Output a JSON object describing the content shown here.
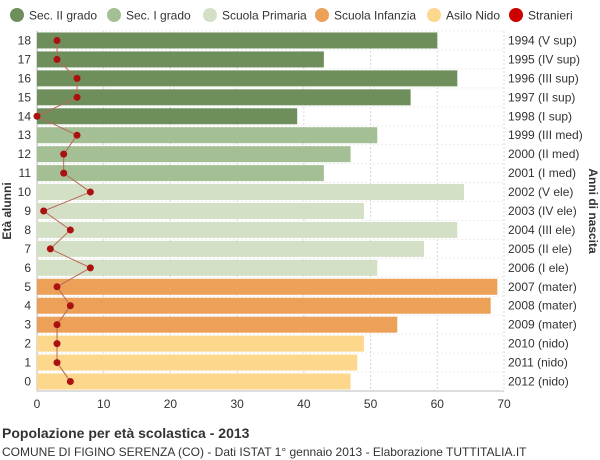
{
  "chart_data": {
    "type": "bar",
    "orientation": "horizontal",
    "title": "Popolazione per età scolastica - 2013",
    "subtitle": "COMUNE DI FIGINO SERENZA (CO) - Dati ISTAT 1° gennaio 2013 - Elaborazione TUTTITALIA.IT",
    "ylabel_left": "Età alunni",
    "ylabel_right": "Anni di nascita",
    "xlim": [
      0,
      70
    ],
    "xticks": [
      0,
      10,
      20,
      30,
      40,
      50,
      60,
      70
    ],
    "grid": true,
    "legend_position": "top",
    "legend": [
      {
        "name": "Sec. II grado",
        "color": "#6e8f5c"
      },
      {
        "name": "Sec. I grado",
        "color": "#a3bf93"
      },
      {
        "name": "Scuola Primaria",
        "color": "#d4e0c5"
      },
      {
        "name": "Scuola Infanzia",
        "color": "#eca058"
      },
      {
        "name": "Asilo Nido",
        "color": "#fdd78c"
      },
      {
        "name": "Stranieri",
        "color": "#cc0000"
      }
    ],
    "rows": [
      {
        "age": "18",
        "birth": "1994 (V sup)",
        "value": 60,
        "stranieri": 3,
        "group": 0
      },
      {
        "age": "17",
        "birth": "1995 (IV sup)",
        "value": 43,
        "stranieri": 3,
        "group": 0
      },
      {
        "age": "16",
        "birth": "1996 (III sup)",
        "value": 63,
        "stranieri": 6,
        "group": 0
      },
      {
        "age": "15",
        "birth": "1997 (II sup)",
        "value": 56,
        "stranieri": 6,
        "group": 0
      },
      {
        "age": "14",
        "birth": "1998 (I sup)",
        "value": 39,
        "stranieri": 0,
        "group": 0
      },
      {
        "age": "13",
        "birth": "1999 (III med)",
        "value": 51,
        "stranieri": 6,
        "group": 1
      },
      {
        "age": "12",
        "birth": "2000 (II med)",
        "value": 47,
        "stranieri": 4,
        "group": 1
      },
      {
        "age": "11",
        "birth": "2001 (I med)",
        "value": 43,
        "stranieri": 4,
        "group": 1
      },
      {
        "age": "10",
        "birth": "2002 (V ele)",
        "value": 64,
        "stranieri": 8,
        "group": 2
      },
      {
        "age": "9",
        "birth": "2003 (IV ele)",
        "value": 49,
        "stranieri": 1,
        "group": 2
      },
      {
        "age": "8",
        "birth": "2004 (III ele)",
        "value": 63,
        "stranieri": 5,
        "group": 2
      },
      {
        "age": "7",
        "birth": "2005 (II ele)",
        "value": 58,
        "stranieri": 2,
        "group": 2
      },
      {
        "age": "6",
        "birth": "2006 (I ele)",
        "value": 51,
        "stranieri": 8,
        "group": 2
      },
      {
        "age": "5",
        "birth": "2007 (mater)",
        "value": 69,
        "stranieri": 3,
        "group": 3
      },
      {
        "age": "4",
        "birth": "2008 (mater)",
        "value": 68,
        "stranieri": 5,
        "group": 3
      },
      {
        "age": "3",
        "birth": "2009 (mater)",
        "value": 54,
        "stranieri": 3,
        "group": 3
      },
      {
        "age": "2",
        "birth": "2010 (nido)",
        "value": 49,
        "stranieri": 3,
        "group": 4
      },
      {
        "age": "1",
        "birth": "2011 (nido)",
        "value": 48,
        "stranieri": 3,
        "group": 4
      },
      {
        "age": "0",
        "birth": "2012 (nido)",
        "value": 47,
        "stranieri": 5,
        "group": 4
      }
    ]
  }
}
